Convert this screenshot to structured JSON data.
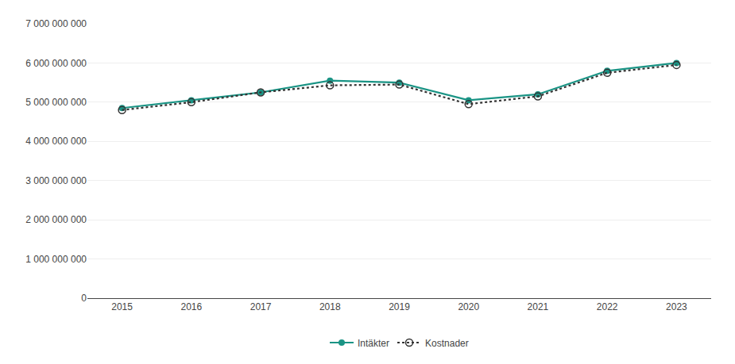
{
  "chart_data": {
    "type": "line",
    "x": [
      2015,
      2016,
      2017,
      2018,
      2019,
      2020,
      2021,
      2022,
      2023
    ],
    "series": [
      {
        "name": "Intäkter",
        "color": "#1a9485",
        "marker": "circle",
        "line_style": "solid",
        "values": [
          4850000000,
          5050000000,
          5250000000,
          5550000000,
          5500000000,
          5050000000,
          5200000000,
          5800000000,
          6000000000
        ]
      },
      {
        "name": "Kostnader",
        "color": "#333333",
        "marker": "circle-open",
        "line_style": "dotted",
        "values": [
          4800000000,
          5000000000,
          5250000000,
          5430000000,
          5450000000,
          4950000000,
          5150000000,
          5750000000,
          5950000000
        ]
      }
    ],
    "xlim": [
      2014.5,
      2023.5
    ],
    "xticks": [
      2015,
      2016,
      2017,
      2018,
      2019,
      2020,
      2021,
      2022,
      2023
    ],
    "ylim": [
      0,
      7000000000
    ],
    "yticks": [
      0,
      {
        "value": 1000000000,
        "label": "1 000 000 000"
      },
      {
        "value": 2000000000,
        "label": "2 000 000 000"
      },
      {
        "value": 3000000000,
        "label": "3 000 000 000"
      },
      {
        "value": 4000000000,
        "label": "4 000 000 000"
      },
      {
        "value": 5000000000,
        "label": "5 000 000 000"
      },
      {
        "value": 6000000000,
        "label": "6 000 000 000"
      },
      {
        "value": 7000000000,
        "label": "7 000 000 000"
      }
    ],
    "grid": true,
    "legend": "bottom"
  }
}
